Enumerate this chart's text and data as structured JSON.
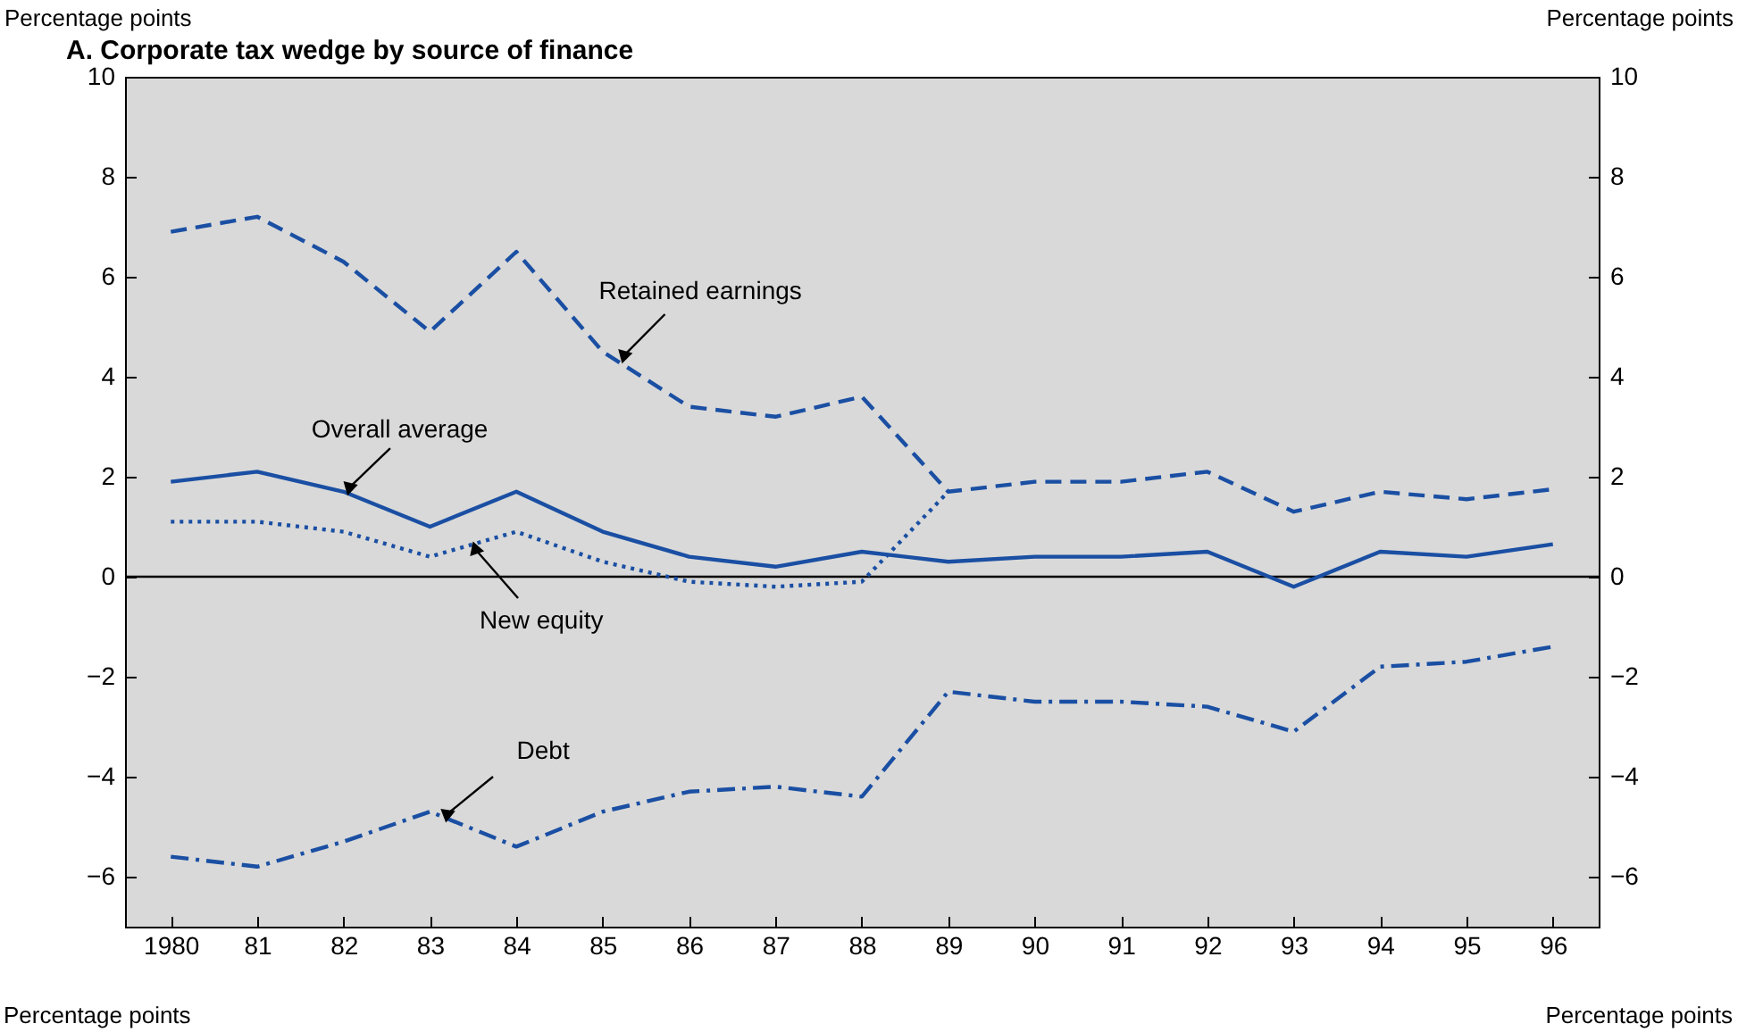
{
  "chart_data": {
    "type": "line",
    "title": "A.  Corporate tax wedge by source of finance",
    "ylabel": "Percentage points",
    "y2label": "Percentage points",
    "categories": [
      "1980",
      "81",
      "82",
      "83",
      "84",
      "85",
      "86",
      "87",
      "88",
      "89",
      "90",
      "91",
      "92",
      "93",
      "94",
      "95",
      "96"
    ],
    "series": [
      {
        "name": "Retained earnings",
        "color": "#1a4fa3",
        "line_style": "dashed",
        "values": [
          6.9,
          7.2,
          6.3,
          4.9,
          6.5,
          4.5,
          3.4,
          3.2,
          3.6,
          1.7,
          1.9,
          1.9,
          2.1,
          1.3,
          1.7,
          1.55,
          1.75
        ]
      },
      {
        "name": "Overall average",
        "color": "#1a4fa3",
        "line_style": "solid",
        "values": [
          1.9,
          2.1,
          1.7,
          1.0,
          1.7,
          0.9,
          0.4,
          0.2,
          0.5,
          0.3,
          0.4,
          0.4,
          0.5,
          -0.2,
          0.5,
          0.4,
          0.65
        ]
      },
      {
        "name": "New equity",
        "color": "#1a4fa3",
        "line_style": "dotted",
        "values": [
          1.1,
          1.1,
          0.9,
          0.4,
          0.9,
          0.3,
          -0.1,
          -0.2,
          -0.1,
          1.7,
          null,
          null,
          null,
          null,
          null,
          null,
          null
        ]
      },
      {
        "name": "Debt",
        "color": "#1a4fa3",
        "line_style": "dashdot",
        "values": [
          -5.6,
          -5.8,
          -5.3,
          -4.7,
          -5.4,
          -4.7,
          -4.3,
          -4.2,
          -4.4,
          -2.3,
          -2.5,
          -2.5,
          -2.6,
          -3.1,
          -1.8,
          -1.7,
          -1.4
        ]
      }
    ],
    "ylim": [
      -7,
      10
    ],
    "yticks": [
      -6,
      -4,
      -2,
      0,
      2,
      4,
      6,
      8,
      10
    ],
    "y2lim": [
      -7,
      10
    ],
    "y2ticks": [
      -6,
      -4,
      -2,
      0,
      2,
      4,
      6,
      8,
      10
    ],
    "ref_lines": [
      {
        "axis": "y",
        "value": 0,
        "color": "#000000"
      }
    ],
    "annotations": [
      "Percentage points",
      "Percentage points"
    ],
    "grid": false,
    "marker": "none"
  }
}
